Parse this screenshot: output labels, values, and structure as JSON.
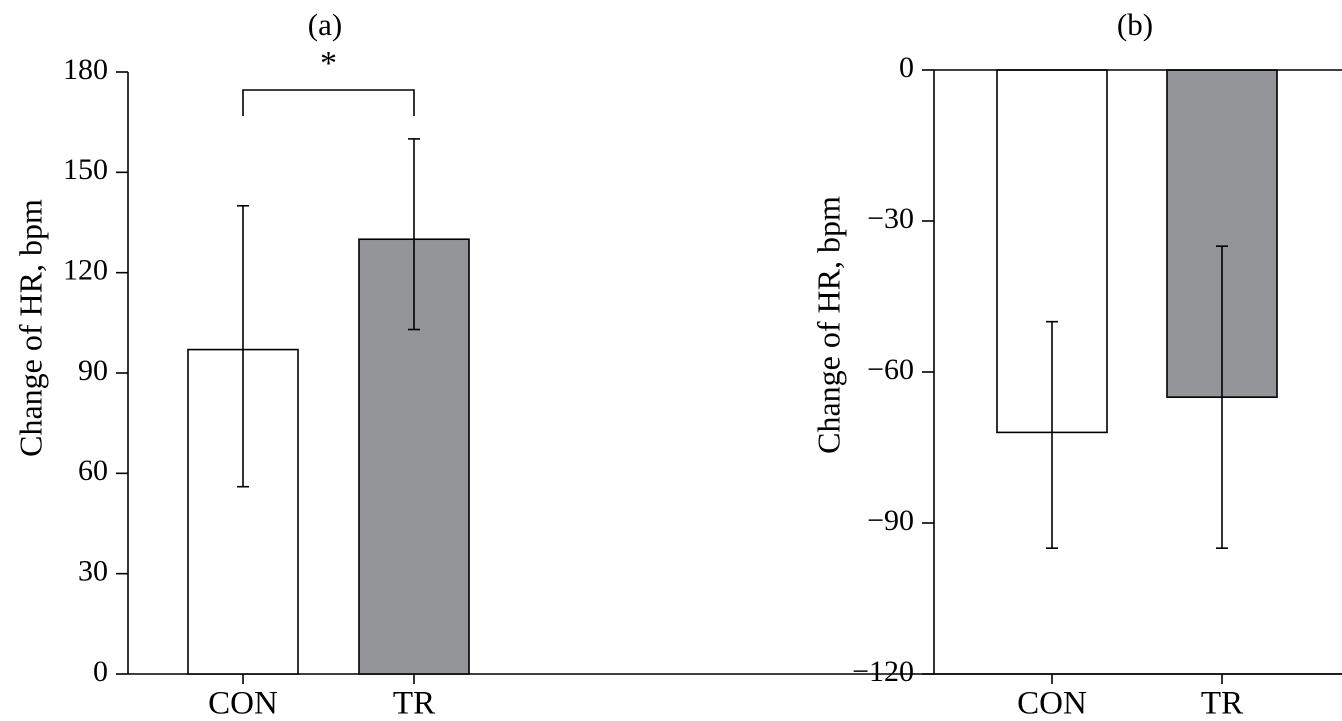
{
  "chart_data": [
    {
      "panel": "(a)",
      "type": "bar",
      "ylabel": "Change of HR, bpm",
      "ylim": [
        0,
        180
      ],
      "yticks": [
        0,
        30,
        60,
        90,
        120,
        150,
        180
      ],
      "categories": [
        "CON",
        "TR"
      ],
      "values": [
        97,
        130
      ],
      "error_low": [
        56,
        103
      ],
      "error_high": [
        140,
        160
      ],
      "colors": [
        "#ffffff",
        "#939598"
      ],
      "baseline": 0,
      "significance": {
        "between": [
          "CON",
          "TR"
        ],
        "label": "*"
      }
    },
    {
      "panel": "(b)",
      "type": "bar",
      "ylabel": "Change of HR, bpm",
      "ylim": [
        -120,
        0
      ],
      "yticks": [
        -120,
        -90,
        -60,
        -30,
        0
      ],
      "categories": [
        "CON",
        "TR"
      ],
      "values": [
        -72,
        -65
      ],
      "error_low": [
        -95,
        -95
      ],
      "error_high": [
        -50,
        -35
      ],
      "colors": [
        "#ffffff",
        "#939598"
      ],
      "baseline": 0
    }
  ]
}
